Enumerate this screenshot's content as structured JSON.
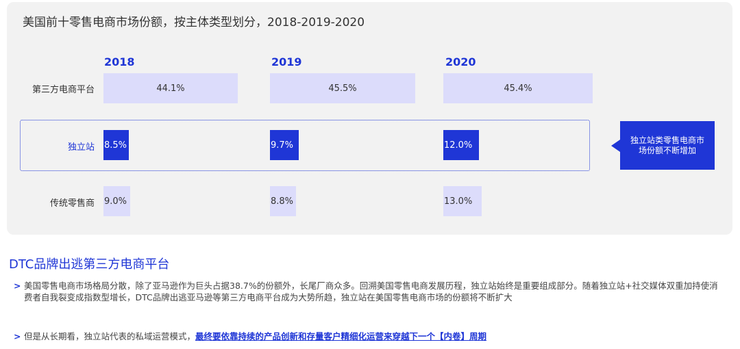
{
  "chart_data": {
    "type": "table",
    "title": "美国前十零售电商市场份额，按主体类型划分，2018-2019-2020",
    "columns": [
      "2018",
      "2019",
      "2020"
    ],
    "rows": [
      {
        "label": "第三方电商平台",
        "values": [
          "44.1%",
          "45.5%",
          "45.4%"
        ]
      },
      {
        "label": "独立站",
        "values": [
          "8.5%",
          "9.7%",
          "12.0%"
        ]
      },
      {
        "label": "传统零售商",
        "values": [
          "9.0%",
          "8.8%",
          "13.0%"
        ]
      }
    ],
    "callout": "独立站类零售电商市场份额不断增加",
    "colors": {
      "accent": "#1f36d6",
      "light_bar": "#dcdcfb",
      "panel": "#f2f2f2"
    }
  },
  "section": {
    "title": "DTC品牌出逃第三方电商平台",
    "bullets": [
      {
        "marker": ">",
        "text": "美国零售电商市场格局分散，除了亚马逊作为巨头占据38.7%的份额外，长尾厂商众多。回溯美国零售电商发展历程，独立站始终是重要组成部分。随着独立站+社交媒体双重加持使消费者自我裂变成指数型增长，DTC品牌出逃亚马逊等第三方电商平台成为大势所趋，独立站在美国零售电商市场的份额将不断扩大"
      },
      {
        "marker": ">",
        "text": "但是从长期看，独立站代表的私域运营模式，",
        "link": "最终要依靠持续的产品创新和存量客户精细化运营来穿越下一个【内卷】周期"
      }
    ]
  }
}
